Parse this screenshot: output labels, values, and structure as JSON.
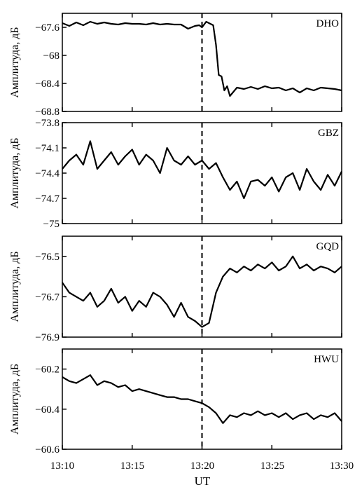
{
  "chart_data": [
    {
      "type": "line",
      "station": "DHO",
      "ylabel": "Амплитуда, дБ",
      "ylim": [
        -68.8,
        -67.4
      ],
      "yticks": [
        -67.6,
        -68,
        -68.4,
        -68.8
      ],
      "ytick_labels": [
        "−67.6",
        "−68",
        "−68.4",
        "−68.8"
      ],
      "x": [
        10.0,
        10.5,
        11.0,
        11.5,
        12.0,
        12.5,
        13.0,
        13.5,
        14.0,
        14.5,
        15.0,
        15.5,
        16.0,
        16.5,
        17.0,
        17.5,
        18.0,
        18.5,
        19.0,
        19.5,
        19.8,
        20.0,
        20.3,
        20.6,
        20.8,
        21.0,
        21.2,
        21.4,
        21.6,
        21.8,
        22.0,
        22.5,
        23.0,
        23.5,
        24.0,
        24.5,
        25.0,
        25.5,
        26.0,
        26.5,
        27.0,
        27.5,
        28.0,
        28.5,
        29.0,
        29.5,
        30.0
      ],
      "y": [
        -67.54,
        -67.58,
        -67.53,
        -67.57,
        -67.52,
        -67.55,
        -67.53,
        -67.55,
        -67.56,
        -67.54,
        -67.55,
        -67.55,
        -67.56,
        -67.54,
        -67.56,
        -67.55,
        -67.56,
        -67.56,
        -67.62,
        -67.58,
        -67.57,
        -67.6,
        -67.52,
        -67.55,
        -67.57,
        -67.85,
        -68.28,
        -68.3,
        -68.5,
        -68.44,
        -68.58,
        -68.46,
        -68.48,
        -68.45,
        -68.48,
        -68.44,
        -68.47,
        -68.46,
        -68.5,
        -68.47,
        -68.53,
        -68.47,
        -68.5,
        -68.46,
        -68.47,
        -68.48,
        -68.5
      ]
    },
    {
      "type": "line",
      "station": "GBZ",
      "ylabel": "Амплитуда, дБ",
      "ylim": [
        -75.0,
        -73.8
      ],
      "yticks": [
        -73.8,
        -74.1,
        -74.4,
        -74.7,
        -75
      ],
      "ytick_labels": [
        "−73.8",
        "−74.1",
        "−74.4",
        "−74.7",
        "−75"
      ],
      "x": [
        10.0,
        10.5,
        11.0,
        11.5,
        12.0,
        12.5,
        13.0,
        13.5,
        14.0,
        14.5,
        15.0,
        15.5,
        16.0,
        16.5,
        17.0,
        17.5,
        18.0,
        18.5,
        19.0,
        19.5,
        20.0,
        20.5,
        21.0,
        21.5,
        22.0,
        22.5,
        23.0,
        23.5,
        24.0,
        24.5,
        25.0,
        25.5,
        26.0,
        26.5,
        27.0,
        27.5,
        28.0,
        28.5,
        29.0,
        29.5,
        30.0
      ],
      "y": [
        -74.35,
        -74.25,
        -74.18,
        -74.3,
        -74.02,
        -74.35,
        -74.25,
        -74.15,
        -74.3,
        -74.2,
        -74.12,
        -74.3,
        -74.18,
        -74.25,
        -74.4,
        -74.1,
        -74.25,
        -74.3,
        -74.2,
        -74.3,
        -74.25,
        -74.35,
        -74.28,
        -74.45,
        -74.6,
        -74.5,
        -74.7,
        -74.5,
        -74.48,
        -74.55,
        -74.45,
        -74.62,
        -74.45,
        -74.4,
        -74.6,
        -74.35,
        -74.5,
        -74.6,
        -74.42,
        -74.55,
        -74.38
      ]
    },
    {
      "type": "line",
      "station": "GQD",
      "ylabel": "Амплитуда, дБ",
      "ylim": [
        -76.9,
        -76.4
      ],
      "yticks": [
        -76.5,
        -76.7,
        -76.9
      ],
      "ytick_labels": [
        "−76.5",
        "−76.7",
        "−76.9"
      ],
      "x": [
        10.0,
        10.5,
        11.0,
        11.5,
        12.0,
        12.5,
        13.0,
        13.5,
        14.0,
        14.5,
        15.0,
        15.5,
        16.0,
        16.5,
        17.0,
        17.5,
        18.0,
        18.5,
        19.0,
        19.5,
        20.0,
        20.5,
        21.0,
        21.5,
        22.0,
        22.5,
        23.0,
        23.5,
        24.0,
        24.5,
        25.0,
        25.5,
        26.0,
        26.5,
        27.0,
        27.5,
        28.0,
        28.5,
        29.0,
        29.5,
        30.0
      ],
      "y": [
        -76.63,
        -76.68,
        -76.7,
        -76.72,
        -76.68,
        -76.75,
        -76.72,
        -76.66,
        -76.73,
        -76.7,
        -76.77,
        -76.72,
        -76.75,
        -76.68,
        -76.7,
        -76.74,
        -76.8,
        -76.73,
        -76.8,
        -76.82,
        -76.85,
        -76.83,
        -76.68,
        -76.6,
        -76.56,
        -76.58,
        -76.55,
        -76.57,
        -76.54,
        -76.56,
        -76.53,
        -76.57,
        -76.55,
        -76.5,
        -76.56,
        -76.54,
        -76.57,
        -76.55,
        -76.56,
        -76.58,
        -76.55
      ]
    },
    {
      "type": "line",
      "station": "HWU",
      "ylabel": "Амплитуда, дБ",
      "ylim": [
        -60.6,
        -60.1
      ],
      "yticks": [
        -60.2,
        -60.4,
        -60.6
      ],
      "ytick_labels": [
        "−60.2",
        "−60.4",
        "−60.6"
      ],
      "x": [
        10.0,
        10.5,
        11.0,
        11.5,
        12.0,
        12.5,
        13.0,
        13.5,
        14.0,
        14.5,
        15.0,
        15.5,
        16.0,
        16.5,
        17.0,
        17.5,
        18.0,
        18.5,
        19.0,
        19.5,
        20.0,
        20.5,
        21.0,
        21.5,
        22.0,
        22.5,
        23.0,
        23.5,
        24.0,
        24.5,
        25.0,
        25.5,
        26.0,
        26.5,
        27.0,
        27.5,
        28.0,
        28.5,
        29.0,
        29.5,
        30.0
      ],
      "y": [
        -60.24,
        -60.26,
        -60.27,
        -60.25,
        -60.23,
        -60.28,
        -60.26,
        -60.27,
        -60.29,
        -60.28,
        -60.31,
        -60.3,
        -60.31,
        -60.32,
        -60.33,
        -60.34,
        -60.34,
        -60.35,
        -60.35,
        -60.36,
        -60.37,
        -60.39,
        -60.42,
        -60.47,
        -60.43,
        -60.44,
        -60.42,
        -60.43,
        -60.41,
        -60.43,
        -60.42,
        -60.44,
        -60.42,
        -60.45,
        -60.43,
        -60.42,
        -60.45,
        -60.43,
        -60.44,
        -60.42,
        -60.46
      ]
    }
  ],
  "x_axis": {
    "label": "UT",
    "ticks": [
      "13:10",
      "13:15",
      "13:20",
      "13:25",
      "13:30"
    ],
    "tick_minutes": [
      10,
      15,
      20,
      25,
      30
    ],
    "range_minutes": [
      10,
      30
    ]
  },
  "event_marker": {
    "x": 20,
    "style": "dashed"
  },
  "colors": {
    "line": "#000000",
    "background": "#ffffff"
  }
}
